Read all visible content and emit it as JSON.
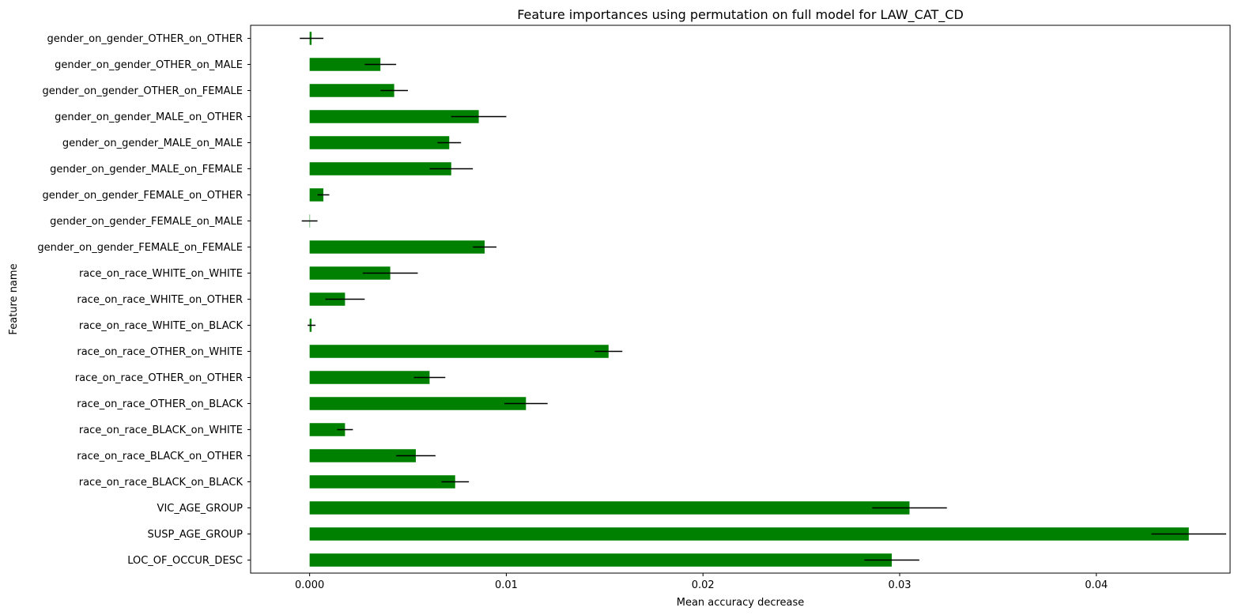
{
  "chart_data": {
    "type": "bar",
    "orientation": "horizontal",
    "title": "Feature importances using permutation on full model for LAW_CAT_CD",
    "xlabel": "Mean accuracy decrease",
    "ylabel": "Feature name",
    "xlim": [
      -0.003,
      0.0468
    ],
    "xticks": [
      0.0,
      0.01,
      0.02,
      0.03,
      0.04
    ],
    "xtick_labels": [
      "0.000",
      "0.01",
      "0.02",
      "0.03",
      "0.04"
    ],
    "grid": false,
    "bar_color": "#008000",
    "errorbar_color": "#000000",
    "categories": [
      "LOC_OF_OCCUR_DESC",
      "SUSP_AGE_GROUP",
      "VIC_AGE_GROUP",
      "race_on_race_BLACK_on_BLACK",
      "race_on_race_BLACK_on_OTHER",
      "race_on_race_BLACK_on_WHITE",
      "race_on_race_OTHER_on_BLACK",
      "race_on_race_OTHER_on_OTHER",
      "race_on_race_OTHER_on_WHITE",
      "race_on_race_WHITE_on_BLACK",
      "race_on_race_WHITE_on_OTHER",
      "race_on_race_WHITE_on_WHITE",
      "gender_on_gender_FEMALE_on_FEMALE",
      "gender_on_gender_FEMALE_on_MALE",
      "gender_on_gender_FEMALE_on_OTHER",
      "gender_on_gender_MALE_on_FEMALE",
      "gender_on_gender_MALE_on_MALE",
      "gender_on_gender_MALE_on_OTHER",
      "gender_on_gender_OTHER_on_FEMALE",
      "gender_on_gender_OTHER_on_MALE",
      "gender_on_gender_OTHER_on_OTHER"
    ],
    "values": [
      0.0296,
      0.0447,
      0.0305,
      0.0074,
      0.0054,
      0.0018,
      0.011,
      0.0061,
      0.0152,
      0.0001,
      0.0018,
      0.0041,
      0.0089,
      0.0,
      0.0007,
      0.0072,
      0.0071,
      0.0086,
      0.0043,
      0.0036,
      0.0001
    ],
    "errors": [
      0.0014,
      0.0019,
      0.0019,
      0.0007,
      0.001,
      0.0004,
      0.0011,
      0.0008,
      0.0007,
      0.0002,
      0.001,
      0.0014,
      0.0006,
      0.0004,
      0.0003,
      0.0011,
      0.0006,
      0.0014,
      0.0007,
      0.0008,
      0.0006
    ]
  }
}
